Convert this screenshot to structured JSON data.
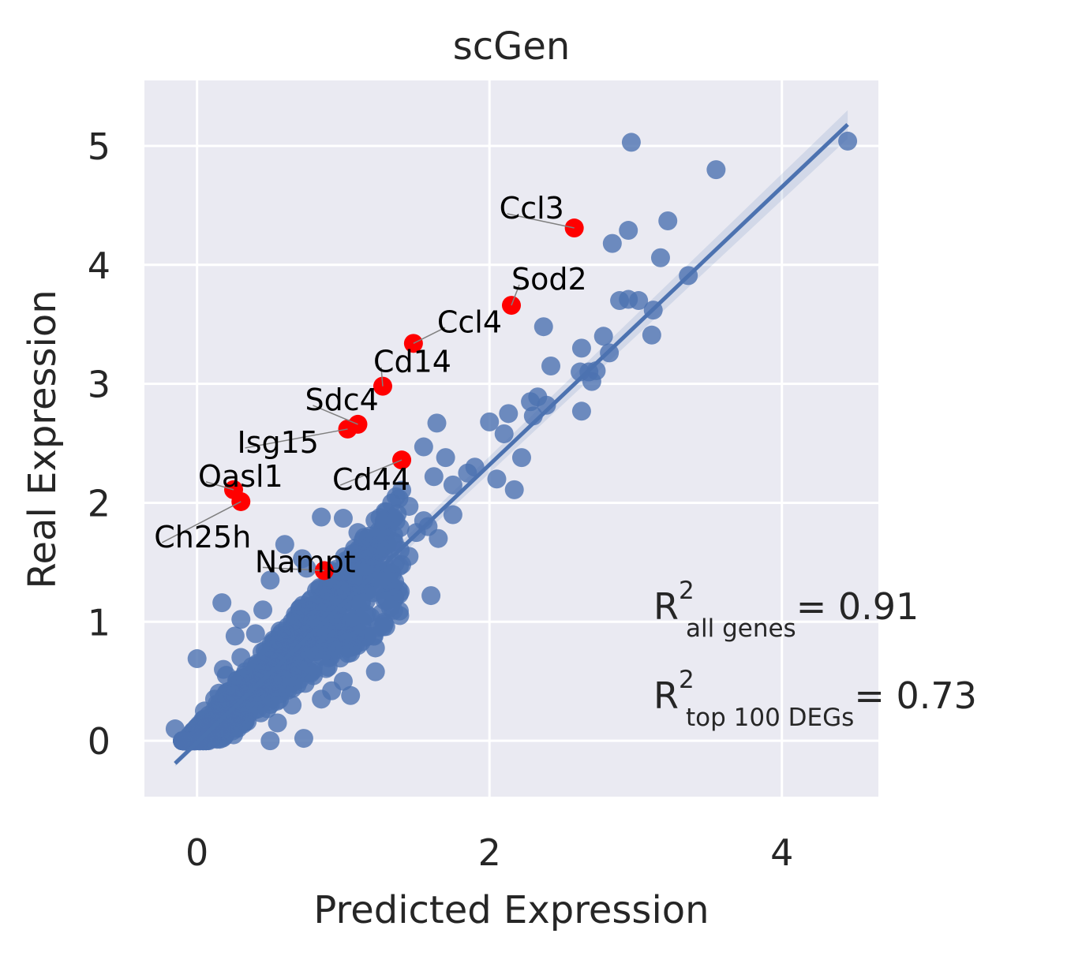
{
  "chart_data": {
    "type": "scatter",
    "title": "scGen",
    "xlabel": "Predicted Expression",
    "ylabel": "Real Expression",
    "xlim": [
      -0.36,
      4.66
    ],
    "ylim": [
      -0.47,
      5.55
    ],
    "xticks": [
      0,
      2,
      4
    ],
    "yticks": [
      0,
      1,
      2,
      3,
      4,
      5
    ],
    "grid": true,
    "colors": {
      "background": "#eaeaf2",
      "grid": "#ffffff",
      "points": "#4c72b0",
      "highlight": "#ff0000",
      "regression": "#4c72b0"
    },
    "regression_line": {
      "x": [
        -0.15,
        4.45
      ],
      "y": [
        -0.19,
        5.18
      ]
    },
    "points": [
      {
        "x": 4.45,
        "y": 5.04
      },
      {
        "x": 2.97,
        "y": 5.03
      },
      {
        "x": 3.55,
        "y": 4.8
      },
      {
        "x": 3.22,
        "y": 4.37
      },
      {
        "x": 2.95,
        "y": 4.29
      },
      {
        "x": 2.84,
        "y": 4.18
      },
      {
        "x": 3.17,
        "y": 4.06
      },
      {
        "x": 3.36,
        "y": 3.91
      },
      {
        "x": 2.89,
        "y": 3.7
      },
      {
        "x": 2.95,
        "y": 3.71
      },
      {
        "x": 3.02,
        "y": 3.7
      },
      {
        "x": 3.12,
        "y": 3.62
      },
      {
        "x": 2.37,
        "y": 3.48
      },
      {
        "x": 2.78,
        "y": 3.4
      },
      {
        "x": 3.11,
        "y": 3.41
      },
      {
        "x": 2.63,
        "y": 3.3
      },
      {
        "x": 2.82,
        "y": 3.26
      },
      {
        "x": 2.42,
        "y": 3.15
      },
      {
        "x": 2.62,
        "y": 3.1
      },
      {
        "x": 2.68,
        "y": 3.1
      },
      {
        "x": 2.73,
        "y": 3.11
      },
      {
        "x": 2.7,
        "y": 3.02
      },
      {
        "x": 2.33,
        "y": 2.89
      },
      {
        "x": 2.28,
        "y": 2.85
      },
      {
        "x": 2.39,
        "y": 2.82
      },
      {
        "x": 2.13,
        "y": 2.75
      },
      {
        "x": 2.63,
        "y": 2.77
      },
      {
        "x": 2.0,
        "y": 2.68
      },
      {
        "x": 1.64,
        "y": 2.67
      },
      {
        "x": 2.3,
        "y": 2.73
      },
      {
        "x": 2.1,
        "y": 2.58
      },
      {
        "x": 1.55,
        "y": 2.47
      },
      {
        "x": 1.7,
        "y": 2.38
      },
      {
        "x": 2.22,
        "y": 2.38
      },
      {
        "x": 2.05,
        "y": 2.2
      },
      {
        "x": 1.85,
        "y": 2.25
      },
      {
        "x": 1.62,
        "y": 2.22
      },
      {
        "x": 2.17,
        "y": 2.11
      },
      {
        "x": 1.75,
        "y": 2.15
      },
      {
        "x": 1.45,
        "y": 1.97
      },
      {
        "x": 1.75,
        "y": 1.9
      },
      {
        "x": 1.55,
        "y": 1.85
      },
      {
        "x": 1.28,
        "y": 1.85
      },
      {
        "x": 0.85,
        "y": 1.88
      },
      {
        "x": 1.0,
        "y": 1.87
      },
      {
        "x": 1.1,
        "y": 1.75
      },
      {
        "x": 1.65,
        "y": 1.7
      },
      {
        "x": 1.3,
        "y": 1.65
      },
      {
        "x": 0.6,
        "y": 1.65
      },
      {
        "x": 0.72,
        "y": 1.53
      },
      {
        "x": 1.15,
        "y": 1.6
      },
      {
        "x": 1.4,
        "y": 1.48
      },
      {
        "x": 0.5,
        "y": 1.35
      },
      {
        "x": 0.75,
        "y": 1.45
      },
      {
        "x": 1.6,
        "y": 1.22
      },
      {
        "x": 0.17,
        "y": 1.16
      },
      {
        "x": 0.3,
        "y": 1.02
      },
      {
        "x": 0.88,
        "y": 1.2
      },
      {
        "x": 1.3,
        "y": 1.18
      },
      {
        "x": 1.15,
        "y": 1.05
      },
      {
        "x": 0.26,
        "y": 0.88
      },
      {
        "x": 1.22,
        "y": 0.78
      },
      {
        "x": 0.0,
        "y": 0.69
      },
      {
        "x": 0.5,
        "y": 0.67
      },
      {
        "x": 1.22,
        "y": 0.58
      },
      {
        "x": 1.0,
        "y": 0.5
      },
      {
        "x": 1.05,
        "y": 0.38
      },
      {
        "x": 0.92,
        "y": 0.42
      },
      {
        "x": 0.65,
        "y": 0.3
      },
      {
        "x": 0.73,
        "y": 0.02
      },
      {
        "x": -0.15,
        "y": 0.1
      },
      {
        "x": 0.02,
        "y": 0.0
      },
      {
        "x": 0.5,
        "y": 0.0
      },
      {
        "x": 0.3,
        "y": 0.28
      },
      {
        "x": 0.12,
        "y": 0.35
      },
      {
        "x": 0.4,
        "y": 0.5
      },
      {
        "x": 0.2,
        "y": 0.55
      },
      {
        "x": 0.6,
        "y": 0.8
      },
      {
        "x": 0.45,
        "y": 0.65
      },
      {
        "x": 0.35,
        "y": 0.45
      },
      {
        "x": 0.08,
        "y": 0.12
      },
      {
        "x": 0.22,
        "y": 0.2
      },
      {
        "x": 0.55,
        "y": 0.45
      },
      {
        "x": 0.7,
        "y": 0.6
      },
      {
        "x": 0.8,
        "y": 0.75
      },
      {
        "x": 0.9,
        "y": 0.9
      },
      {
        "x": 1.05,
        "y": 1.0
      },
      {
        "x": 0.95,
        "y": 1.1
      },
      {
        "x": 0.65,
        "y": 1.0
      },
      {
        "x": 0.4,
        "y": 0.9
      },
      {
        "x": 0.3,
        "y": 0.7
      },
      {
        "x": 0.15,
        "y": 0.4
      },
      {
        "x": 0.05,
        "y": 0.25
      },
      {
        "x": 1.3,
        "y": 1.35
      },
      {
        "x": 1.45,
        "y": 1.55
      },
      {
        "x": 1.2,
        "y": 1.4
      },
      {
        "x": 1.5,
        "y": 1.75
      },
      {
        "x": 1.58,
        "y": 1.8
      },
      {
        "x": 1.9,
        "y": 2.3
      },
      {
        "x": 0.85,
        "y": 0.35
      },
      {
        "x": 0.55,
        "y": 0.15
      },
      {
        "x": 0.25,
        "y": 0.05
      },
      {
        "x": 0.1,
        "y": 0.02
      },
      {
        "x": 0.18,
        "y": 0.6
      },
      {
        "x": 0.45,
        "y": 1.1
      }
    ],
    "highlighted": [
      {
        "gene": "Ccl3",
        "x": 2.58,
        "y": 4.31
      },
      {
        "gene": "Sod2",
        "x": 2.15,
        "y": 3.66
      },
      {
        "gene": "Ccl4",
        "x": 1.48,
        "y": 3.34
      },
      {
        "gene": "Cd14",
        "x": 1.27,
        "y": 2.98
      },
      {
        "gene": "Sdc4",
        "x": 1.1,
        "y": 2.66
      },
      {
        "gene": "Isg15",
        "x": 1.03,
        "y": 2.62
      },
      {
        "gene": "Cd44",
        "x": 1.4,
        "y": 2.36
      },
      {
        "gene": "Oasl1",
        "x": 0.25,
        "y": 2.11
      },
      {
        "gene": "Ch25h",
        "x": 0.3,
        "y": 2.01
      },
      {
        "gene": "Nampt",
        "x": 0.87,
        "y": 1.43
      }
    ],
    "annotations": {
      "r2_all": {
        "base": "R",
        "sup": "2",
        "sub": "all genes",
        "value": "= 0.91"
      },
      "r2_top": {
        "base": "R",
        "sup": "2",
        "sub": "top 100 DEGs",
        "value": "= 0.73"
      }
    }
  }
}
